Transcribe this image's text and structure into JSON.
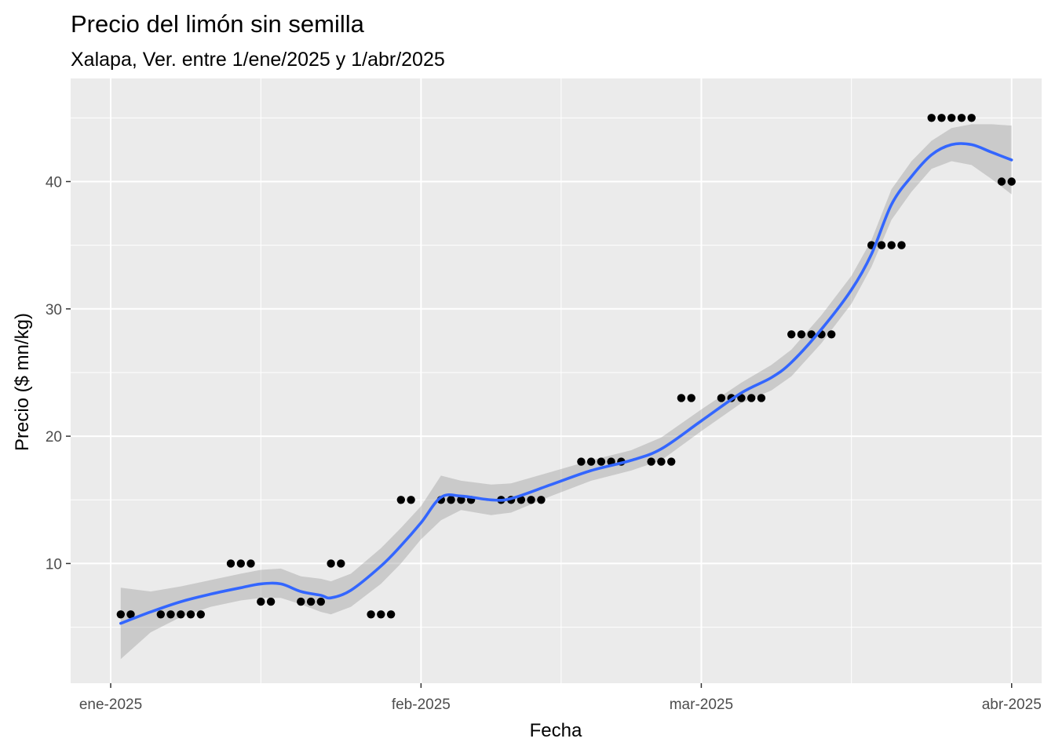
{
  "chart_data": {
    "type": "scatter",
    "title": "Precio del limón sin semilla",
    "subtitle": "Xalapa, Ver. entre 1/ene/2025 y 1/abr/2025",
    "xlabel": "Fecha",
    "ylabel": "Precio ($ mn/kg)",
    "x_ticks": [
      {
        "date": "2025-01-01",
        "label": "ene-2025"
      },
      {
        "date": "2025-02-01",
        "label": "feb-2025"
      },
      {
        "date": "2025-03-01",
        "label": "mar-2025"
      },
      {
        "date": "2025-04-01",
        "label": "abr-2025"
      }
    ],
    "x_minor_ticks": [
      "2025-01-16",
      "2025-02-15",
      "2025-03-16"
    ],
    "y_ticks": [
      10,
      20,
      30,
      40
    ],
    "y_minor_ticks": [
      5,
      15,
      25,
      35,
      45
    ],
    "xlim": [
      "2024-12-28",
      "2025-04-04"
    ],
    "ylim": [
      0.6,
      48.1
    ],
    "grid": true,
    "colors": {
      "points": "#000000",
      "smooth_line": "#3366ff",
      "ribbon": "#999999",
      "panel": "#ebebeb",
      "grid": "#ffffff"
    },
    "points": [
      {
        "x": "2025-01-02",
        "y": 6
      },
      {
        "x": "2025-01-03",
        "y": 6
      },
      {
        "x": "2025-01-06",
        "y": 6
      },
      {
        "x": "2025-01-07",
        "y": 6
      },
      {
        "x": "2025-01-08",
        "y": 6
      },
      {
        "x": "2025-01-09",
        "y": 6
      },
      {
        "x": "2025-01-10",
        "y": 6
      },
      {
        "x": "2025-01-13",
        "y": 10
      },
      {
        "x": "2025-01-14",
        "y": 10
      },
      {
        "x": "2025-01-15",
        "y": 10
      },
      {
        "x": "2025-01-16",
        "y": 7
      },
      {
        "x": "2025-01-17",
        "y": 7
      },
      {
        "x": "2025-01-20",
        "y": 7
      },
      {
        "x": "2025-01-21",
        "y": 7
      },
      {
        "x": "2025-01-22",
        "y": 7
      },
      {
        "x": "2025-01-23",
        "y": 10
      },
      {
        "x": "2025-01-24",
        "y": 10
      },
      {
        "x": "2025-01-27",
        "y": 6
      },
      {
        "x": "2025-01-28",
        "y": 6
      },
      {
        "x": "2025-01-29",
        "y": 6
      },
      {
        "x": "2025-01-30",
        "y": 15
      },
      {
        "x": "2025-01-31",
        "y": 15
      },
      {
        "x": "2025-02-03",
        "y": 15
      },
      {
        "x": "2025-02-04",
        "y": 15
      },
      {
        "x": "2025-02-05",
        "y": 15
      },
      {
        "x": "2025-02-06",
        "y": 15
      },
      {
        "x": "2025-02-09",
        "y": 15
      },
      {
        "x": "2025-02-10",
        "y": 15
      },
      {
        "x": "2025-02-11",
        "y": 15
      },
      {
        "x": "2025-02-12",
        "y": 15
      },
      {
        "x": "2025-02-13",
        "y": 15
      },
      {
        "x": "2025-02-17",
        "y": 18
      },
      {
        "x": "2025-02-18",
        "y": 18
      },
      {
        "x": "2025-02-19",
        "y": 18
      },
      {
        "x": "2025-02-20",
        "y": 18
      },
      {
        "x": "2025-02-21",
        "y": 18
      },
      {
        "x": "2025-02-24",
        "y": 18
      },
      {
        "x": "2025-02-25",
        "y": 18
      },
      {
        "x": "2025-02-26",
        "y": 18
      },
      {
        "x": "2025-02-27",
        "y": 23
      },
      {
        "x": "2025-02-28",
        "y": 23
      },
      {
        "x": "2025-03-03",
        "y": 23
      },
      {
        "x": "2025-03-04",
        "y": 23
      },
      {
        "x": "2025-03-05",
        "y": 23
      },
      {
        "x": "2025-03-06",
        "y": 23
      },
      {
        "x": "2025-03-07",
        "y": 23
      },
      {
        "x": "2025-03-10",
        "y": 28
      },
      {
        "x": "2025-03-11",
        "y": 28
      },
      {
        "x": "2025-03-12",
        "y": 28
      },
      {
        "x": "2025-03-13",
        "y": 28
      },
      {
        "x": "2025-03-14",
        "y": 28
      },
      {
        "x": "2025-03-18",
        "y": 35
      },
      {
        "x": "2025-03-19",
        "y": 35
      },
      {
        "x": "2025-03-20",
        "y": 35
      },
      {
        "x": "2025-03-21",
        "y": 35
      },
      {
        "x": "2025-03-24",
        "y": 45
      },
      {
        "x": "2025-03-25",
        "y": 45
      },
      {
        "x": "2025-03-26",
        "y": 45
      },
      {
        "x": "2025-03-27",
        "y": 45
      },
      {
        "x": "2025-03-28",
        "y": 45
      },
      {
        "x": "2025-03-31",
        "y": 40
      },
      {
        "x": "2025-04-01",
        "y": 40
      }
    ],
    "smooth": [
      {
        "x": "2025-01-02",
        "y": 5.3,
        "lo": 2.5,
        "hi": 8.1
      },
      {
        "x": "2025-01-05",
        "y": 6.2,
        "lo": 4.6,
        "hi": 7.8
      },
      {
        "x": "2025-01-08",
        "y": 7.0,
        "lo": 5.8,
        "hi": 8.2
      },
      {
        "x": "2025-01-11",
        "y": 7.6,
        "lo": 6.6,
        "hi": 8.7
      },
      {
        "x": "2025-01-14",
        "y": 8.1,
        "lo": 7.1,
        "hi": 9.2
      },
      {
        "x": "2025-01-16",
        "y": 8.4,
        "lo": 7.3,
        "hi": 9.5
      },
      {
        "x": "2025-01-18",
        "y": 8.4,
        "lo": 7.3,
        "hi": 9.6
      },
      {
        "x": "2025-01-20",
        "y": 7.8,
        "lo": 6.8,
        "hi": 9.0
      },
      {
        "x": "2025-01-22",
        "y": 7.5,
        "lo": 6.2,
        "hi": 8.8
      },
      {
        "x": "2025-01-23",
        "y": 7.3,
        "lo": 6.0,
        "hi": 8.6
      },
      {
        "x": "2025-01-25",
        "y": 7.9,
        "lo": 6.6,
        "hi": 9.2
      },
      {
        "x": "2025-01-28",
        "y": 9.8,
        "lo": 8.4,
        "hi": 11.2
      },
      {
        "x": "2025-01-30",
        "y": 11.4,
        "lo": 10.0,
        "hi": 12.8
      },
      {
        "x": "2025-02-01",
        "y": 13.2,
        "lo": 11.9,
        "hi": 14.5
      },
      {
        "x": "2025-02-03",
        "y": 15.2,
        "lo": 13.4,
        "hi": 16.9
      },
      {
        "x": "2025-02-05",
        "y": 15.3,
        "lo": 14.2,
        "hi": 16.5
      },
      {
        "x": "2025-02-08",
        "y": 15.0,
        "lo": 13.8,
        "hi": 16.2
      },
      {
        "x": "2025-02-10",
        "y": 15.1,
        "lo": 14.0,
        "hi": 16.3
      },
      {
        "x": "2025-02-14",
        "y": 16.2,
        "lo": 15.3,
        "hi": 17.2
      },
      {
        "x": "2025-02-18",
        "y": 17.3,
        "lo": 16.5,
        "hi": 18.1
      },
      {
        "x": "2025-02-22",
        "y": 18.1,
        "lo": 17.3,
        "hi": 18.9
      },
      {
        "x": "2025-02-25",
        "y": 19.0,
        "lo": 18.1,
        "hi": 19.9
      },
      {
        "x": "2025-03-01",
        "y": 21.2,
        "lo": 20.4,
        "hi": 22.1
      },
      {
        "x": "2025-03-05",
        "y": 23.4,
        "lo": 22.6,
        "hi": 24.2
      },
      {
        "x": "2025-03-08",
        "y": 24.6,
        "lo": 23.6,
        "hi": 25.6
      },
      {
        "x": "2025-03-10",
        "y": 25.8,
        "lo": 24.7,
        "hi": 26.8
      },
      {
        "x": "2025-03-13",
        "y": 28.4,
        "lo": 27.3,
        "hi": 29.5
      },
      {
        "x": "2025-03-16",
        "y": 31.5,
        "lo": 30.4,
        "hi": 32.6
      },
      {
        "x": "2025-03-18",
        "y": 34.3,
        "lo": 33.3,
        "hi": 35.4
      },
      {
        "x": "2025-03-20",
        "y": 38.2,
        "lo": 37.0,
        "hi": 39.4
      },
      {
        "x": "2025-03-22",
        "y": 40.4,
        "lo": 39.2,
        "hi": 41.6
      },
      {
        "x": "2025-03-24",
        "y": 42.1,
        "lo": 41.0,
        "hi": 43.2
      },
      {
        "x": "2025-03-26",
        "y": 42.9,
        "lo": 41.6,
        "hi": 44.2
      },
      {
        "x": "2025-03-28",
        "y": 42.9,
        "lo": 41.3,
        "hi": 44.5
      },
      {
        "x": "2025-03-30",
        "y": 42.3,
        "lo": 40.2,
        "hi": 44.5
      },
      {
        "x": "2025-04-01",
        "y": 41.7,
        "lo": 39.0,
        "hi": 44.4
      }
    ]
  }
}
